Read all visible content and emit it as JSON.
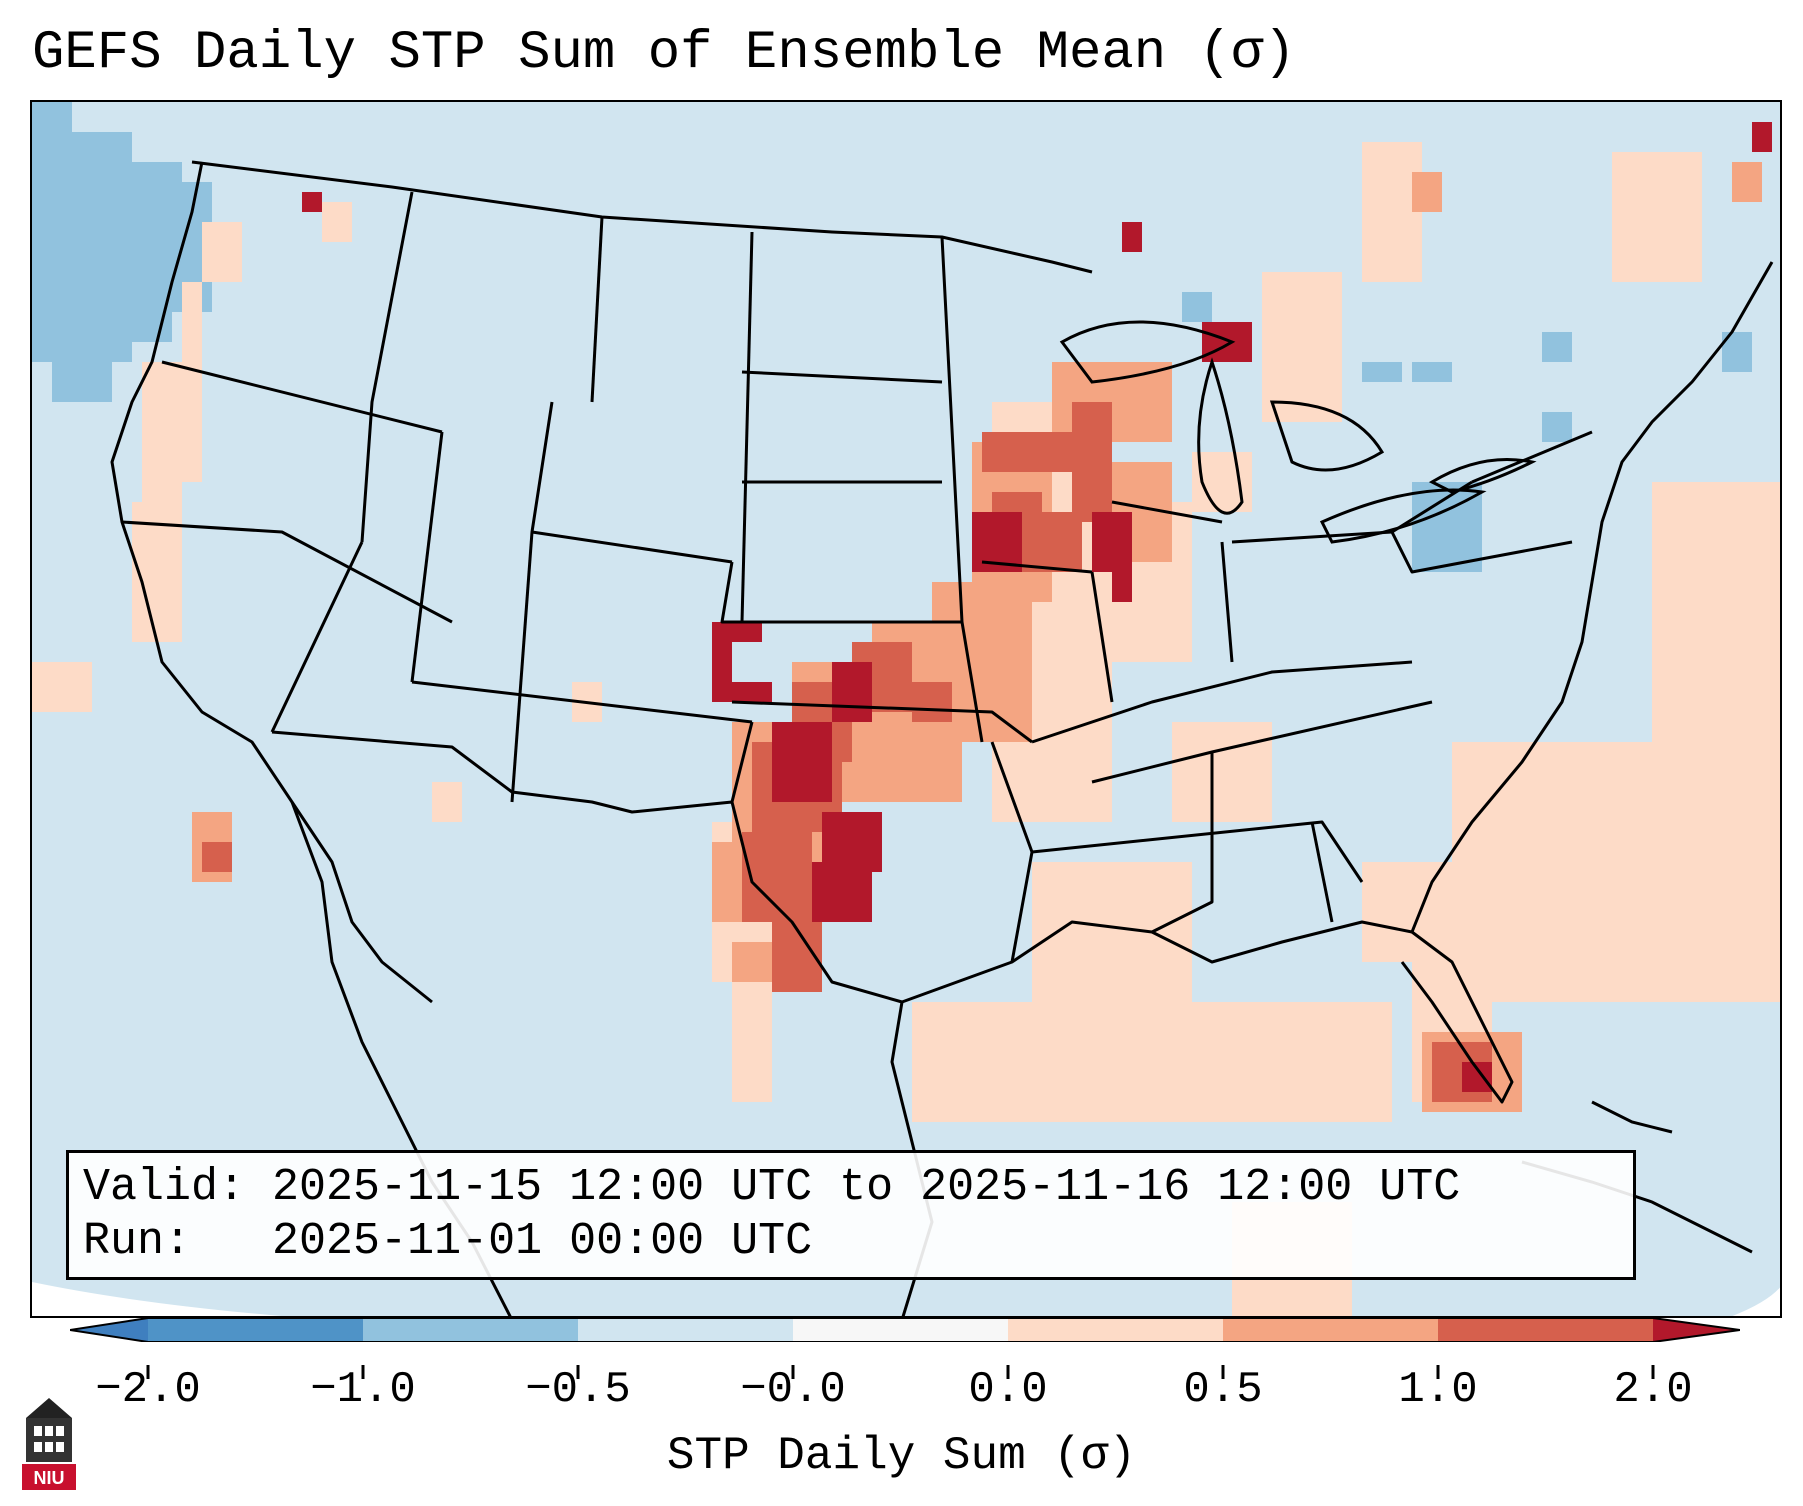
{
  "title": "GEFS Daily STP Sum of Ensemble Mean (σ)",
  "info": {
    "valid_label": "Valid:",
    "valid_value": "2025-11-15 12:00 UTC to 2025-11-16 12:00 UTC",
    "run_label": "Run:",
    "run_value": "2025-11-01 00:00 UTC"
  },
  "colorbar": {
    "label": "STP Daily Sum (σ)",
    "ticks": [
      "−2.0",
      "−1.0",
      "−0.5",
      "−0.0",
      "0.0",
      "0.5",
      "1.0",
      "2.0"
    ],
    "colors": {
      "under": "#3f7fbf",
      "neg2_neg1": "#4f93c7",
      "neg1_neg05": "#91c2de",
      "neg05_0": "#d1e5f0",
      "zero": "#f7f7f7",
      "zero_05": "#fddbc7",
      "p05_p1": "#f4a582",
      "p1_p2": "#d6604d",
      "over": "#b2182b"
    }
  },
  "map": {
    "background_color": "#d1e5f0",
    "projection": "Lambert Conformal, CONUS",
    "outline_color": "#000000"
  },
  "logo": {
    "text": "NIU",
    "color": "#c8102e"
  }
}
